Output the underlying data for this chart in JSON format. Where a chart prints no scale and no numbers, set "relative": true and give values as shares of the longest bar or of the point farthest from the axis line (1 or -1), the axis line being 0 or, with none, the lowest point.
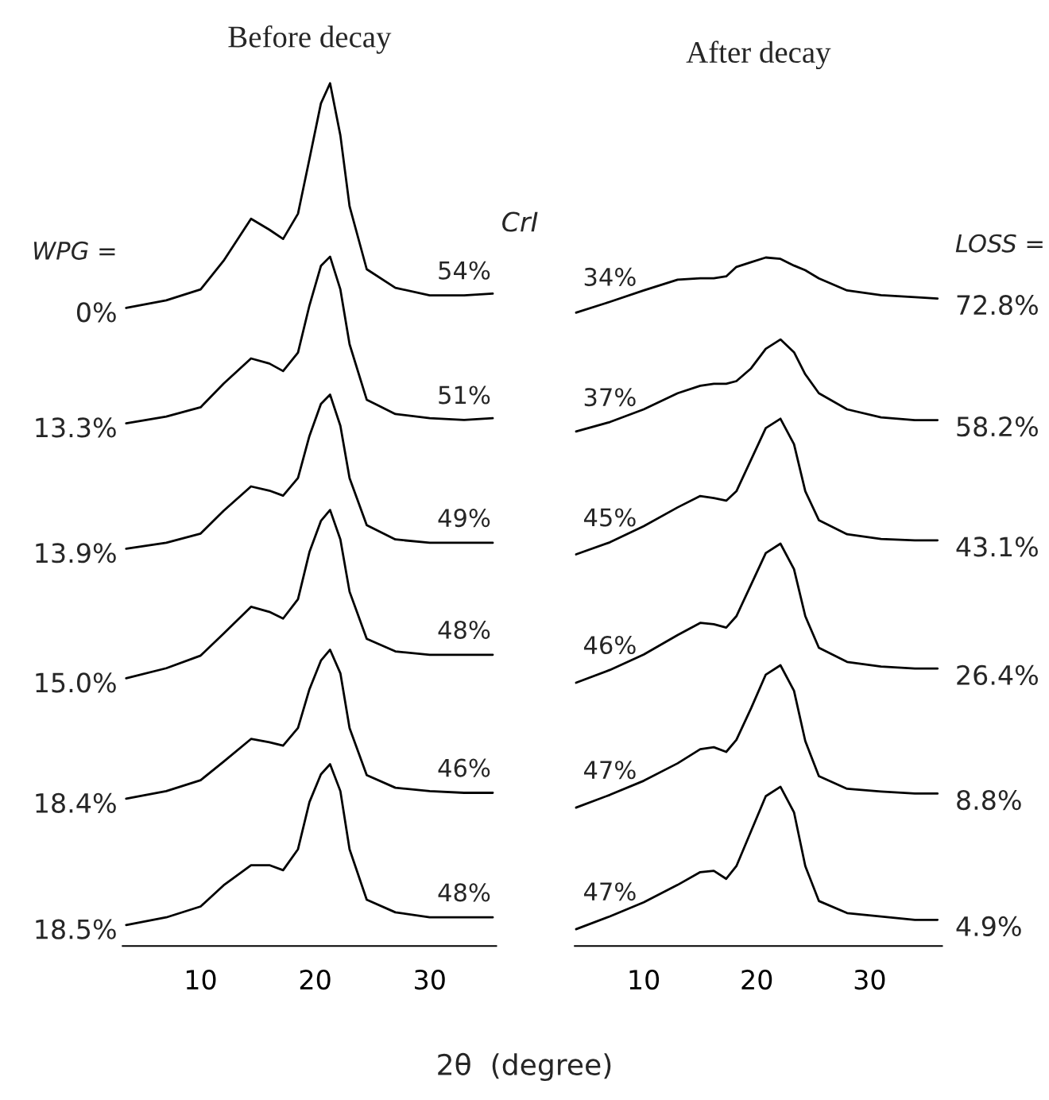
{
  "chart_data": [
    {
      "type": "line",
      "title": "Before decay",
      "xlabel": "2θ  (degree)",
      "legend_title": "WPG =",
      "relative": true,
      "xlim": [
        3.2,
        35.8
      ],
      "xticks": [
        10,
        20,
        30
      ],
      "x": [
        3.5,
        7,
        10,
        12,
        14.4,
        16,
        17.2,
        18.5,
        19.5,
        20.5,
        21.3,
        22.2,
        23,
        24.5,
        27,
        30,
        33,
        35.5
      ],
      "series": [
        {
          "name": "0%",
          "color": "#000000",
          "values": [
            0.733,
            0.742,
            0.755,
            0.789,
            0.839,
            0.826,
            0.815,
            0.845,
            0.91,
            0.976,
            1.0,
            0.938,
            0.854,
            0.779,
            0.757,
            0.748,
            0.748,
            0.75
          ]
        },
        {
          "name": "13.3%",
          "color": "#000000",
          "values": [
            0.596,
            0.604,
            0.615,
            0.643,
            0.673,
            0.667,
            0.658,
            0.68,
            0.736,
            0.783,
            0.794,
            0.755,
            0.69,
            0.624,
            0.607,
            0.602,
            0.6,
            0.602
          ]
        },
        {
          "name": "13.9%",
          "color": "#000000",
          "values": [
            0.447,
            0.454,
            0.465,
            0.492,
            0.521,
            0.516,
            0.51,
            0.531,
            0.581,
            0.619,
            0.63,
            0.593,
            0.531,
            0.475,
            0.458,
            0.454,
            0.454,
            0.454
          ]
        },
        {
          "name": "15.0%",
          "color": "#000000",
          "values": [
            0.293,
            0.305,
            0.32,
            0.346,
            0.378,
            0.372,
            0.364,
            0.387,
            0.443,
            0.48,
            0.493,
            0.458,
            0.396,
            0.34,
            0.325,
            0.321,
            0.321,
            0.321
          ]
        },
        {
          "name": "18.4%",
          "color": "#000000",
          "values": [
            0.15,
            0.159,
            0.172,
            0.194,
            0.221,
            0.217,
            0.213,
            0.234,
            0.28,
            0.314,
            0.327,
            0.299,
            0.234,
            0.178,
            0.163,
            0.159,
            0.157,
            0.157
          ]
        },
        {
          "name": "18.5%",
          "color": "#000000",
          "values": [
            0.0,
            0.009,
            0.022,
            0.047,
            0.071,
            0.071,
            0.065,
            0.09,
            0.146,
            0.179,
            0.191,
            0.159,
            0.09,
            0.03,
            0.015,
            0.009,
            0.009,
            0.009
          ]
        }
      ],
      "annotations": [
        "54%",
        "51%",
        "49%",
        "48%",
        "46%",
        "48%"
      ]
    },
    {
      "type": "line",
      "title": "After decay",
      "legend_title": "LOSS =",
      "relative": true,
      "xlim": [
        3.9,
        36.4
      ],
      "xticks": [
        10,
        20,
        30
      ],
      "x": [
        4,
        7,
        10,
        13,
        15,
        16.2,
        17.3,
        18.2,
        19.5,
        20.8,
        22.1,
        23.3,
        24.3,
        25.5,
        28,
        31,
        34,
        36
      ],
      "series": [
        {
          "name": "72.8%",
          "color": "#000000",
          "values": [
            0.918,
            0.934,
            0.951,
            0.967,
            0.969,
            0.969,
            0.972,
            0.986,
            0.993,
            1.0,
            0.998,
            0.988,
            0.981,
            0.969,
            0.951,
            0.944,
            0.941,
            0.939
          ]
        },
        {
          "name": "58.2%",
          "color": "#000000",
          "values": [
            0.741,
            0.755,
            0.774,
            0.798,
            0.809,
            0.812,
            0.812,
            0.816,
            0.835,
            0.864,
            0.878,
            0.859,
            0.826,
            0.798,
            0.774,
            0.762,
            0.758,
            0.758
          ]
        },
        {
          "name": "43.1%",
          "color": "#000000",
          "values": [
            0.558,
            0.576,
            0.6,
            0.628,
            0.645,
            0.642,
            0.638,
            0.652,
            0.699,
            0.746,
            0.76,
            0.722,
            0.652,
            0.609,
            0.588,
            0.581,
            0.579,
            0.579
          ]
        },
        {
          "name": "26.4%",
          "color": "#000000",
          "values": [
            0.367,
            0.386,
            0.409,
            0.438,
            0.456,
            0.454,
            0.449,
            0.466,
            0.513,
            0.56,
            0.574,
            0.536,
            0.466,
            0.419,
            0.398,
            0.391,
            0.388,
            0.388
          ]
        },
        {
          "name": "8.8%",
          "color": "#000000",
          "values": [
            0.181,
            0.2,
            0.221,
            0.247,
            0.268,
            0.271,
            0.264,
            0.282,
            0.329,
            0.379,
            0.393,
            0.355,
            0.28,
            0.228,
            0.209,
            0.205,
            0.202,
            0.202
          ]
        },
        {
          "name": "4.9%",
          "color": "#000000",
          "values": [
            0.0,
            0.019,
            0.04,
            0.066,
            0.085,
            0.087,
            0.075,
            0.094,
            0.146,
            0.198,
            0.212,
            0.174,
            0.094,
            0.042,
            0.024,
            0.019,
            0.014,
            0.014
          ]
        }
      ],
      "annotations": [
        "CrI",
        "34%",
        "37%",
        "45%",
        "46%",
        "47%",
        "47%"
      ]
    }
  ]
}
